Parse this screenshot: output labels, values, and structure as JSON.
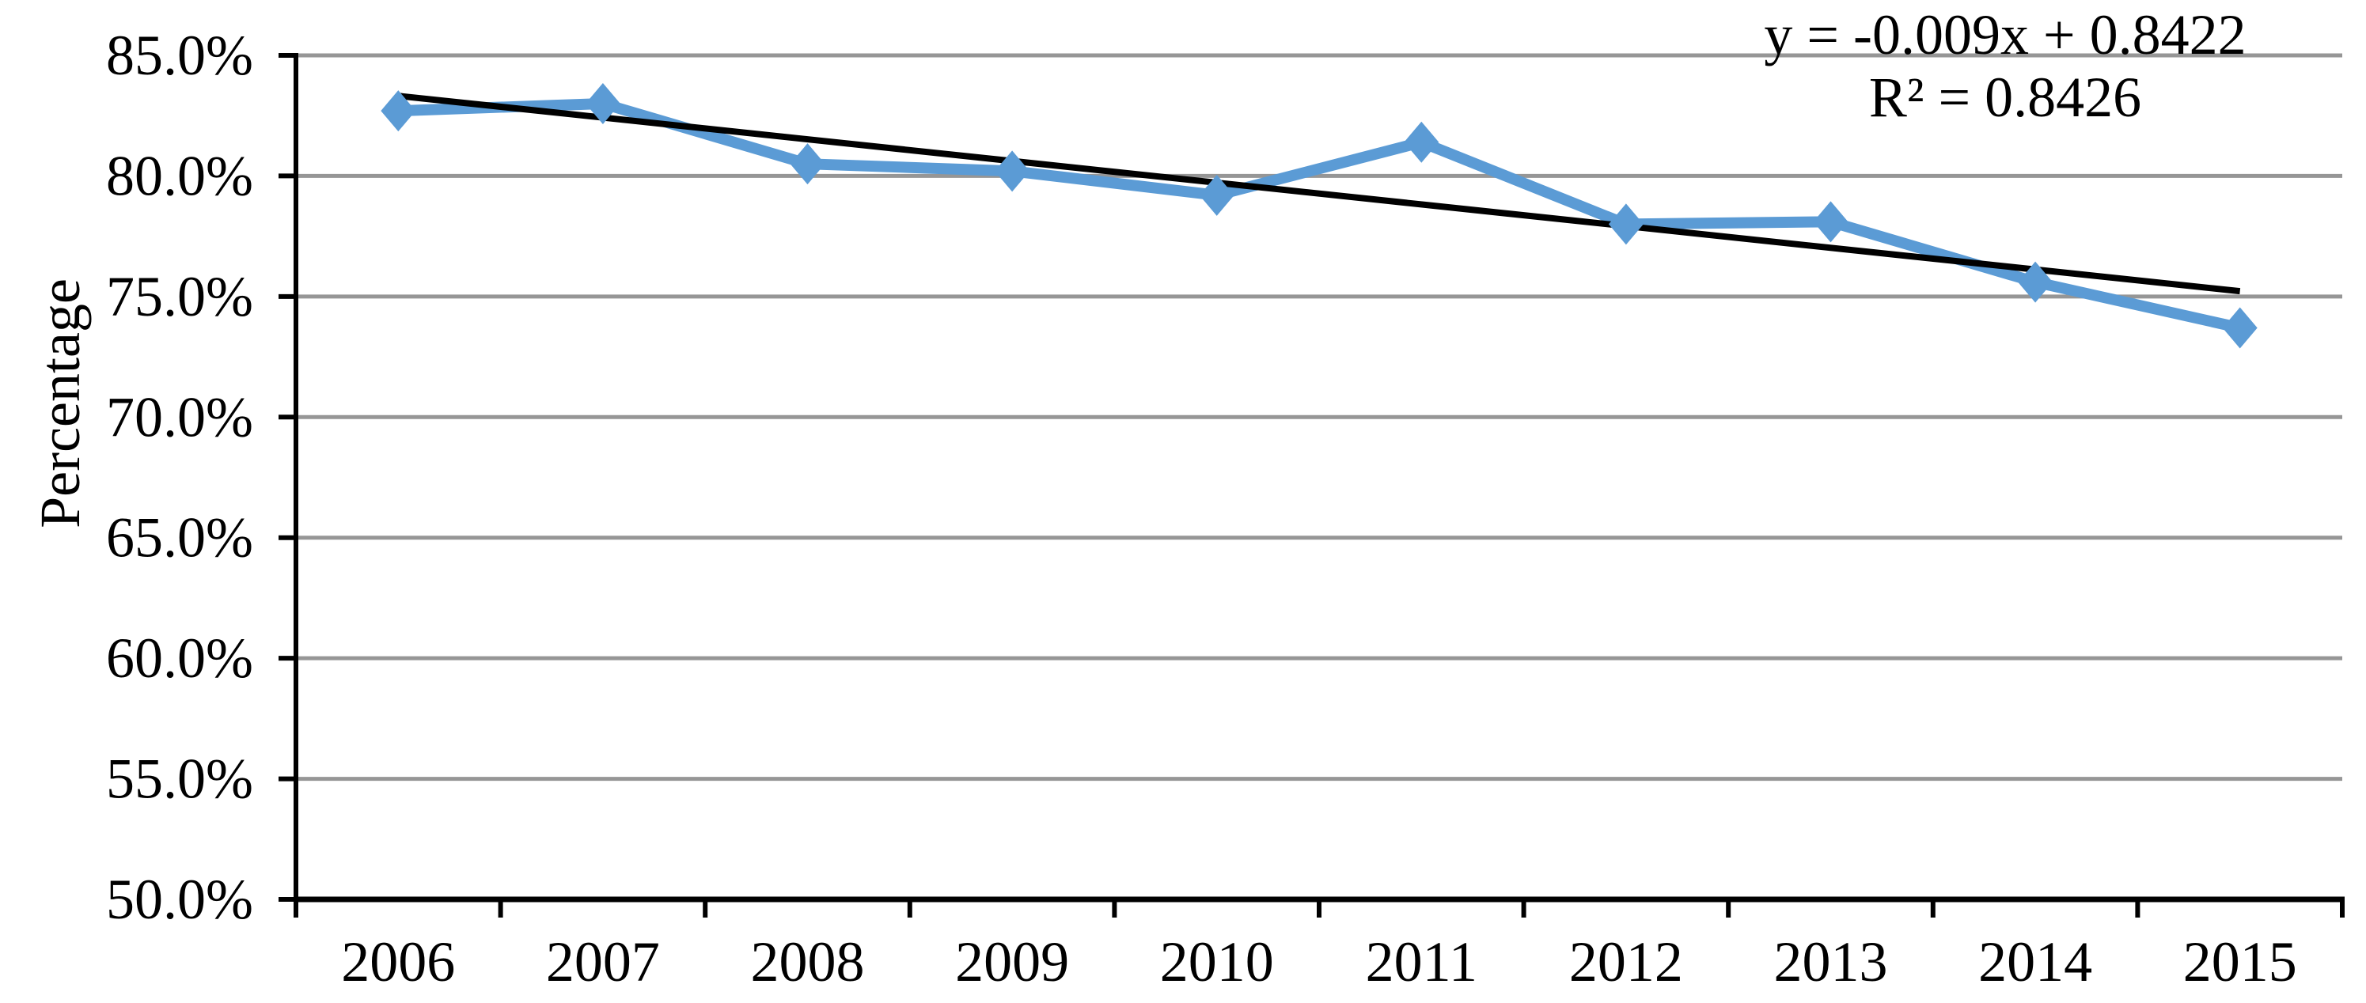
{
  "chart_data": {
    "type": "line",
    "title": "",
    "ylabel": "Percentage",
    "xlabel": "",
    "categories": [
      "2006",
      "2007",
      "2008",
      "2009",
      "2010",
      "2011",
      "2012",
      "2013",
      "2014",
      "2015"
    ],
    "series": [
      {
        "name": "Percentage",
        "values": [
          82.7,
          83.0,
          80.5,
          80.2,
          79.2,
          81.4,
          78.0,
          78.1,
          75.6,
          73.7
        ],
        "marker": "diamond"
      }
    ],
    "ylim": [
      50,
      85
    ],
    "ytick_step": 5,
    "ytick_labels": [
      "85.0%",
      "80.0%",
      "75.0%",
      "70.0%",
      "65.0%",
      "60.0%",
      "55.0%",
      "50.0%"
    ],
    "grid": true,
    "legend_position": "none",
    "trendline": {
      "slope": -0.009,
      "intercept": 0.8422,
      "equation_text": "y = -0.009x + 0.8422",
      "r_squared_text": "R² = 0.8426"
    },
    "colors": {
      "series": "#5B9BD5",
      "trendline": "#000000",
      "gridline": "#969696",
      "axis": "#000000",
      "text": "#000000",
      "background": "#FFFFFF"
    }
  }
}
